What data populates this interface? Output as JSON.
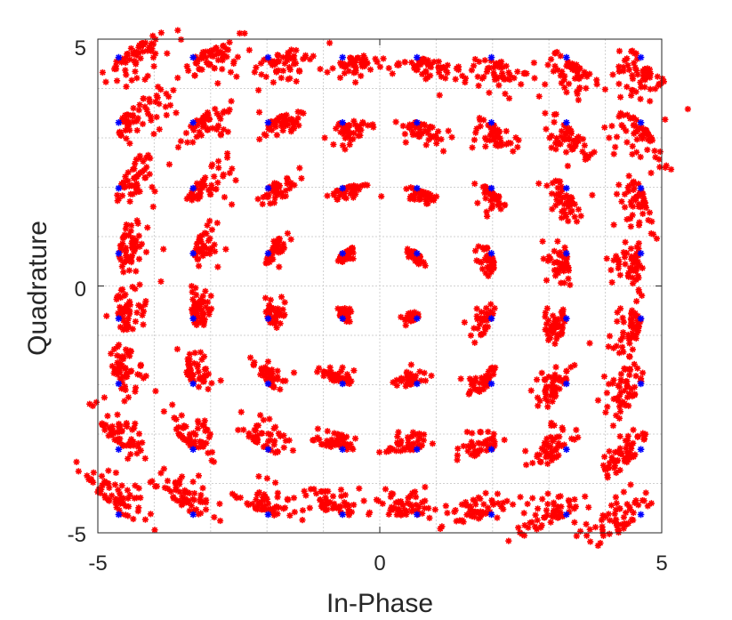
{
  "chart_data": {
    "type": "scatter",
    "xlabel": "In-Phase",
    "ylabel": "Quadrature",
    "xlim": [
      -5,
      5
    ],
    "ylim": [
      -5,
      5
    ],
    "xticks": [
      "-5",
      "0",
      "5"
    ],
    "yticks": [
      "5",
      "0",
      "-5"
    ],
    "grid": true,
    "constellation_levels": [
      -4.63,
      -3.31,
      -1.98,
      -0.66,
      0.66,
      1.98,
      3.31,
      4.63
    ],
    "series": [
      {
        "marker": "*",
        "color": "#ff0000",
        "description_points": "received symbols clustered around each constellation point"
      },
      {
        "marker": "*",
        "color": "#0000ff",
        "description_points": "ideal 64-QAM constellation points"
      }
    ]
  }
}
